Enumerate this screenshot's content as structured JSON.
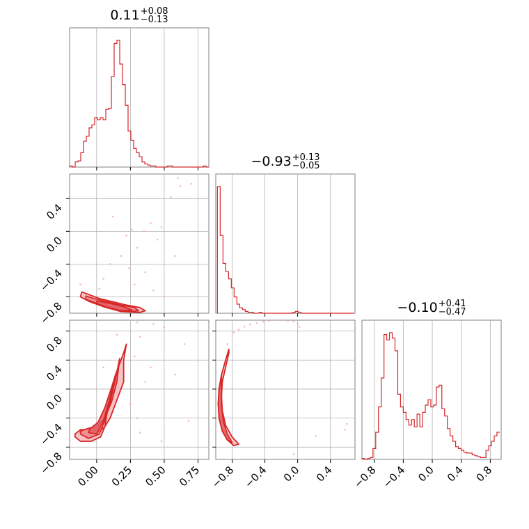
{
  "chart_data": [
    {
      "type": "histogram",
      "param_index": 0,
      "title": {
        "median": "0.11",
        "plus": "+0.08",
        "minus": "−0.13"
      },
      "xlim": [
        -0.2,
        0.83
      ],
      "xticks": [
        0.0,
        0.25,
        0.5,
        0.75
      ],
      "xtick_labels": [
        "0.00",
        "0.25",
        "0.50",
        "0.75"
      ],
      "bin_edges": [
        -0.2,
        -0.1794,
        -0.1588,
        -0.1382,
        -0.1176,
        -0.097,
        -0.0764,
        -0.0558,
        -0.0352,
        -0.0146,
        0.006,
        0.0266,
        0.0472,
        0.0678,
        0.0884,
        0.109,
        0.1296,
        0.1502,
        0.1708,
        0.1914,
        0.212,
        0.2326,
        0.2532,
        0.2738,
        0.2944,
        0.315,
        0.3356,
        0.3562,
        0.3768,
        0.3974,
        0.418,
        0.4386,
        0.4592,
        0.4798,
        0.5004,
        0.521,
        0.5416,
        0.5622,
        0.5828,
        0.6034,
        0.624,
        0.6446,
        0.6652,
        0.6858,
        0.7064,
        0.727,
        0.7476,
        0.7682,
        0.7888,
        0.8094,
        0.83
      ],
      "counts": [
        1,
        0,
        5,
        6,
        14,
        25,
        30,
        38,
        41,
        48,
        46,
        48,
        46,
        56,
        57,
        88,
        120,
        123,
        100,
        80,
        60,
        35,
        26,
        18,
        14,
        10,
        5,
        3,
        2,
        1,
        1,
        0,
        0,
        0,
        0,
        1,
        1,
        0,
        0,
        0,
        0,
        0,
        0,
        0,
        0,
        0,
        0,
        0,
        1,
        0
      ],
      "ymax": 123
    },
    {
      "type": "histogram",
      "param_index": 1,
      "title": {
        "median": "−0.93",
        "plus": "+0.13",
        "minus": "−0.05"
      },
      "xlim": [
        -1.0,
        0.7
      ],
      "xticks": [
        -0.8,
        -0.4,
        0.0,
        0.4
      ],
      "xtick_labels": [
        "−0.8",
        "−0.4",
        "0.0",
        "0.4"
      ],
      "bin_edges": [
        -0.98,
        -0.946,
        -0.912,
        -0.878,
        -0.844,
        -0.81,
        -0.776,
        -0.742,
        -0.708,
        -0.674,
        -0.64,
        -0.606,
        -0.572,
        -0.538,
        -0.504,
        -0.47,
        -0.436,
        -0.402,
        -0.368,
        -0.334,
        -0.3,
        -0.266,
        -0.232,
        -0.198,
        -0.164,
        -0.13,
        -0.096,
        -0.062,
        -0.028,
        0.006,
        0.04,
        0.074,
        0.108,
        0.142,
        0.176,
        0.21,
        0.244,
        0.278,
        0.312,
        0.346,
        0.38,
        0.414,
        0.448,
        0.482,
        0.516,
        0.55,
        0.584,
        0.618,
        0.652,
        0.686
      ],
      "counts": [
        140,
        86,
        55,
        46,
        38,
        28,
        18,
        10,
        6,
        4,
        2,
        1,
        1,
        0,
        0,
        1,
        0,
        0,
        0,
        0,
        0,
        0,
        0,
        0,
        0,
        0,
        0,
        1,
        2,
        1,
        0,
        0,
        0,
        0,
        0,
        0,
        0,
        0,
        0,
        0,
        0,
        0,
        0,
        0,
        0,
        0,
        0,
        0,
        0
      ],
      "ymax": 140
    },
    {
      "type": "histogram",
      "param_index": 2,
      "title": {
        "median": "−0.10",
        "plus": "+0.41",
        "minus": "−0.47"
      },
      "xlim": [
        -0.97,
        0.95
      ],
      "xticks": [
        -0.8,
        -0.4,
        0.0,
        0.4,
        0.8
      ],
      "xtick_labels": [
        "−0.8",
        "−0.4",
        "0.0",
        "0.4",
        "0.8"
      ],
      "bin_edges": [
        -0.97,
        -0.932,
        -0.894,
        -0.856,
        -0.818,
        -0.78,
        -0.742,
        -0.704,
        -0.666,
        -0.628,
        -0.59,
        -0.552,
        -0.514,
        -0.476,
        -0.438,
        -0.4,
        -0.362,
        -0.324,
        -0.286,
        -0.248,
        -0.21,
        -0.172,
        -0.134,
        -0.096,
        -0.058,
        -0.02,
        0.018,
        0.056,
        0.094,
        0.132,
        0.17,
        0.208,
        0.246,
        0.284,
        0.322,
        0.36,
        0.398,
        0.436,
        0.474,
        0.512,
        0.55,
        0.588,
        0.626,
        0.664,
        0.702,
        0.74,
        0.778,
        0.816,
        0.854,
        0.892,
        0.93
      ],
      "counts": [
        1,
        0,
        1,
        2,
        12,
        30,
        58,
        90,
        138,
        132,
        140,
        134,
        120,
        72,
        58,
        52,
        44,
        38,
        44,
        36,
        50,
        36,
        52,
        60,
        66,
        58,
        60,
        80,
        82,
        56,
        48,
        34,
        26,
        20,
        14,
        12,
        10,
        8,
        7,
        7,
        5,
        4,
        3,
        2,
        2,
        10,
        15,
        20,
        26,
        30
      ],
      "ymax": 140
    },
    {
      "type": "scatter",
      "panel": "param1_vs_param0",
      "x_param": 0,
      "y_param": 1,
      "xlim": [
        -0.2,
        0.83
      ],
      "ylim": [
        -1.0,
        0.7
      ],
      "xticks": [
        0.0,
        0.25,
        0.5,
        0.75
      ],
      "yticks": [
        -0.8,
        -0.4,
        0.0,
        0.4
      ],
      "ytick_labels": [
        "−0.8",
        "−0.4",
        "0.0",
        "0.4"
      ],
      "contour_levels": [
        {
          "level": "outer",
          "x": [
            -0.11,
            -0.06,
            0.02,
            0.12,
            0.22,
            0.32,
            0.36,
            0.32,
            0.18,
            0.05,
            -0.05,
            -0.12
          ],
          "y": [
            -0.74,
            -0.77,
            -0.82,
            -0.86,
            -0.9,
            -0.93,
            -0.97,
            -0.99,
            -0.98,
            -0.92,
            -0.86,
            -0.8
          ]
        },
        {
          "level": "mid",
          "x": [
            -0.08,
            -0.02,
            0.08,
            0.18,
            0.28,
            0.31,
            0.22,
            0.1,
            0.0,
            -0.08
          ],
          "y": [
            -0.79,
            -0.82,
            -0.86,
            -0.9,
            -0.93,
            -0.97,
            -0.98,
            -0.93,
            -0.88,
            -0.83
          ]
        },
        {
          "level": "inner",
          "x": [
            0.0,
            0.1,
            0.2,
            0.26,
            0.18,
            0.06,
            0.0
          ],
          "y": [
            -0.85,
            -0.88,
            -0.92,
            -0.96,
            -0.97,
            -0.92,
            -0.88
          ]
        }
      ],
      "scatter_points": [
        [
          0.12,
          0.18
        ],
        [
          0.35,
          0.0
        ],
        [
          0.48,
          0.05
        ],
        [
          0.62,
          0.55
        ],
        [
          0.26,
          0.02
        ],
        [
          0.4,
          0.1
        ],
        [
          0.55,
          0.42
        ],
        [
          0.7,
          0.58
        ],
        [
          0.22,
          -0.05
        ],
        [
          0.45,
          -0.1
        ],
        [
          0.3,
          -0.2
        ],
        [
          0.6,
          0.65
        ],
        [
          0.18,
          -0.3
        ],
        [
          0.36,
          -0.5
        ],
        [
          0.05,
          -0.58
        ],
        [
          -0.12,
          -0.65
        ],
        [
          0.28,
          -0.65
        ],
        [
          0.42,
          -0.72
        ],
        [
          0.02,
          -0.7
        ],
        [
          0.5,
          -0.8
        ],
        [
          0.24,
          -0.45
        ],
        [
          0.58,
          -0.3
        ],
        [
          0.1,
          -0.4
        ]
      ]
    },
    {
      "type": "scatter",
      "panel": "param2_vs_param0",
      "x_param": 0,
      "y_param": 2,
      "xlim": [
        -0.2,
        0.83
      ],
      "ylim": [
        -0.97,
        0.95
      ],
      "xticks": [
        0.0,
        0.25,
        0.5,
        0.75
      ],
      "xtick_labels": [
        "0.00",
        "0.25",
        "0.50",
        "0.75"
      ],
      "yticks": [
        -0.8,
        -0.4,
        0.0,
        0.4,
        0.8
      ],
      "ytick_labels": [
        "−0.8",
        "−0.4",
        "0.0",
        "0.4",
        "0.8"
      ],
      "contour_levels": [
        {
          "level": "outer",
          "x": [
            -0.16,
            -0.12,
            -0.04,
            0.03,
            0.06,
            0.08,
            0.1,
            0.14,
            0.2,
            0.22,
            0.2,
            0.2,
            0.14,
            0.1,
            0.06,
            0.02,
            -0.04,
            -0.12,
            -0.16
          ],
          "y": [
            -0.66,
            -0.72,
            -0.72,
            -0.66,
            -0.52,
            -0.3,
            -0.1,
            0.2,
            0.5,
            0.62,
            0.4,
            0.1,
            -0.2,
            -0.4,
            -0.52,
            -0.58,
            -0.56,
            -0.56,
            -0.62
          ]
        },
        {
          "level": "mid",
          "x": [
            -0.12,
            -0.06,
            0.02,
            0.06,
            0.1,
            0.14,
            0.17,
            0.15,
            0.11,
            0.06,
            0.0,
            -0.06,
            -0.12
          ],
          "y": [
            -0.62,
            -0.68,
            -0.62,
            -0.44,
            -0.18,
            0.14,
            0.42,
            0.1,
            -0.18,
            -0.4,
            -0.52,
            -0.54,
            -0.58
          ]
        },
        {
          "level": "inner",
          "x": [
            -0.06,
            0.0,
            0.05,
            0.1,
            0.14,
            0.11,
            0.06,
            0.01,
            -0.05
          ],
          "y": [
            -0.6,
            -0.62,
            -0.44,
            -0.12,
            0.2,
            0.02,
            -0.26,
            -0.46,
            -0.55
          ]
        }
      ],
      "scatter_points": [
        [
          0.2,
          0.95
        ],
        [
          0.3,
          0.92
        ],
        [
          0.42,
          0.9
        ],
        [
          0.5,
          0.85
        ],
        [
          0.65,
          0.62
        ],
        [
          0.68,
          -0.44
        ],
        [
          0.48,
          -0.72
        ],
        [
          0.32,
          -0.6
        ],
        [
          0.28,
          0.45
        ],
        [
          0.25,
          -0.2
        ],
        [
          0.36,
          0.1
        ],
        [
          0.32,
          0.72
        ],
        [
          0.15,
          0.75
        ],
        [
          0.05,
          0.3
        ],
        [
          0.3,
          -0.4
        ],
        [
          0.4,
          0.3
        ],
        [
          0.58,
          0.2
        ],
        [
          0.22,
          0.6
        ]
      ]
    },
    {
      "type": "scatter",
      "panel": "param2_vs_param1",
      "x_param": 1,
      "y_param": 2,
      "xlim": [
        -1.0,
        0.7
      ],
      "ylim": [
        -0.97,
        0.95
      ],
      "xticks": [
        -0.8,
        -0.4,
        0.0,
        0.4
      ],
      "xtick_labels": [
        "−0.8",
        "−0.4",
        "0.0",
        "0.4"
      ],
      "yticks": [
        -0.8,
        -0.4,
        0.0,
        0.4,
        0.8
      ],
      "contour_levels": [
        {
          "level": "outer",
          "x": [
            -0.84,
            -0.88,
            -0.93,
            -0.96,
            -0.97,
            -0.96,
            -0.92,
            -0.86,
            -0.78,
            -0.72,
            -0.8,
            -0.88,
            -0.92,
            -0.93,
            -0.92,
            -0.88,
            -0.84
          ],
          "y": [
            0.55,
            0.4,
            0.2,
            0.0,
            -0.2,
            -0.4,
            -0.58,
            -0.7,
            -0.78,
            -0.76,
            -0.66,
            -0.5,
            -0.3,
            -0.1,
            0.1,
            0.3,
            0.5
          ]
        },
        {
          "level": "inner",
          "x": [
            -0.93,
            -0.96,
            -0.97,
            -0.96,
            -0.92,
            -0.86,
            -0.8,
            -0.86,
            -0.91,
            -0.93
          ],
          "y": [
            0.2,
            0.0,
            -0.2,
            -0.4,
            -0.58,
            -0.7,
            -0.74,
            -0.62,
            -0.44,
            -0.2
          ]
        }
      ],
      "scatter_points": [
        [
          -0.86,
          0.62
        ],
        [
          -0.78,
          0.78
        ],
        [
          -0.65,
          0.86
        ],
        [
          -0.5,
          0.91
        ],
        [
          -0.35,
          0.94
        ],
        [
          -0.2,
          0.95
        ],
        [
          -0.05,
          0.93
        ],
        [
          0.0,
          0.9
        ],
        [
          0.02,
          0.86
        ],
        [
          -0.72,
          0.82
        ],
        [
          -0.58,
          0.89
        ],
        [
          -0.42,
          0.93
        ],
        [
          -0.27,
          0.95
        ],
        [
          -0.12,
          0.94
        ],
        [
          0.6,
          -0.48
        ],
        [
          0.58,
          -0.56
        ],
        [
          0.22,
          -0.65
        ],
        [
          -0.05,
          -0.9
        ],
        [
          -0.4,
          0.0
        ]
      ]
    }
  ],
  "colors": {
    "line": "#d62728",
    "fill_outer": "#f6b9ba",
    "fill_mid": "#ee8a8c",
    "fill_inner": "#e35d60",
    "scatter": "#f4a8a9",
    "grid": "#b0b0b0",
    "frame": "#808080"
  }
}
